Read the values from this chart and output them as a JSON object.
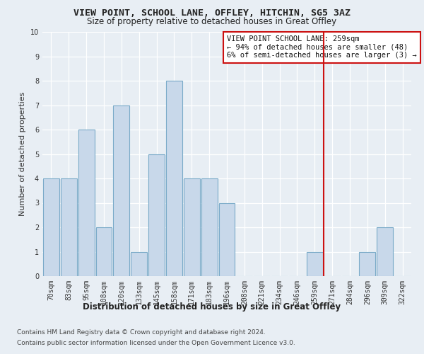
{
  "title": "VIEW POINT, SCHOOL LANE, OFFLEY, HITCHIN, SG5 3AZ",
  "subtitle": "Size of property relative to detached houses in Great Offley",
  "xlabel": "Distribution of detached houses by size in Great Offley",
  "ylabel": "Number of detached properties",
  "bar_labels": [
    "70sqm",
    "83sqm",
    "95sqm",
    "108sqm",
    "120sqm",
    "133sqm",
    "145sqm",
    "158sqm",
    "171sqm",
    "183sqm",
    "196sqm",
    "208sqm",
    "221sqm",
    "234sqm",
    "246sqm",
    "259sqm",
    "271sqm",
    "284sqm",
    "296sqm",
    "309sqm",
    "322sqm"
  ],
  "bar_values": [
    4,
    4,
    6,
    2,
    7,
    1,
    5,
    8,
    4,
    4,
    3,
    0,
    0,
    0,
    0,
    1,
    0,
    0,
    1,
    2,
    0
  ],
  "bar_color": "#c8d8ea",
  "bar_edge_color": "#7aaac8",
  "ylim": [
    0,
    10
  ],
  "yticks": [
    0,
    1,
    2,
    3,
    4,
    5,
    6,
    7,
    8,
    9,
    10
  ],
  "vline_x_index": 15.5,
  "vline_color": "#cc1111",
  "annotation_text": "VIEW POINT SCHOOL LANE: 259sqm\n← 94% of detached houses are smaller (48)\n6% of semi-detached houses are larger (3) →",
  "annotation_box_color": "#ffffff",
  "annotation_box_edge_color": "#cc1111",
  "footer_line1": "Contains HM Land Registry data © Crown copyright and database right 2024.",
  "footer_line2": "Contains public sector information licensed under the Open Government Licence v3.0.",
  "background_color": "#e8eef4",
  "grid_color": "#ffffff",
  "title_fontsize": 9.5,
  "subtitle_fontsize": 8.5,
  "ylabel_fontsize": 8,
  "xlabel_fontsize": 8.5,
  "tick_fontsize": 7,
  "annotation_fontsize": 7.5,
  "footer_fontsize": 6.5
}
